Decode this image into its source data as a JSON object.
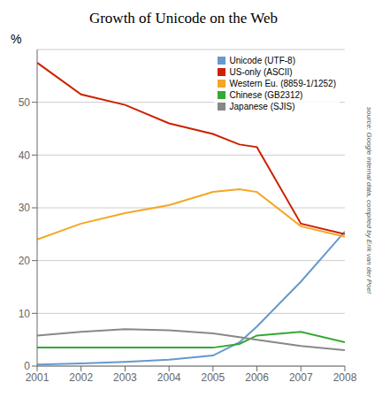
{
  "chart_data": {
    "type": "line",
    "title": "Growth of Unicode on the Web",
    "ylabel": "%",
    "annotations": [
      "source: Google internal data, compiled by Erik van der Poel"
    ],
    "x": [
      2001,
      2002,
      2003,
      2004,
      2005,
      2005.6,
      2006,
      2007,
      2008
    ],
    "series": [
      {
        "name": "Unicode (UTF-8)",
        "color": "#6699cc",
        "values": [
          0.3,
          0.5,
          0.8,
          1.2,
          2.0,
          4.5,
          7.5,
          16.0,
          25.5
        ]
      },
      {
        "name": "US-only (ASCII)",
        "color": "#cc2200",
        "values": [
          57.5,
          51.5,
          49.5,
          46.0,
          44.0,
          42.0,
          41.5,
          27.0,
          25.0
        ]
      },
      {
        "name": "Western Eu. (8859-1/1252)",
        "color": "#f5a623",
        "values": [
          24.0,
          27.0,
          29.0,
          30.5,
          33.0,
          33.5,
          33.0,
          26.5,
          24.5
        ]
      },
      {
        "name": "Chinese (GB2312)",
        "color": "#33aa33",
        "values": [
          3.5,
          3.5,
          3.5,
          3.5,
          3.5,
          4.2,
          5.8,
          6.5,
          4.5
        ]
      },
      {
        "name": "Japanese (SJIS)",
        "color": "#888888",
        "values": [
          5.8,
          6.5,
          7.0,
          6.8,
          6.2,
          5.5,
          5.0,
          3.8,
          3.0
        ]
      }
    ],
    "xlim": [
      2001,
      2008
    ],
    "ylim": [
      0,
      60
    ],
    "xticks": [
      2001,
      2002,
      2003,
      2004,
      2005,
      2006,
      2007,
      2008
    ],
    "yticks": [
      0,
      10,
      20,
      30,
      40,
      50
    ],
    "grid": true,
    "legend": "upper right"
  }
}
